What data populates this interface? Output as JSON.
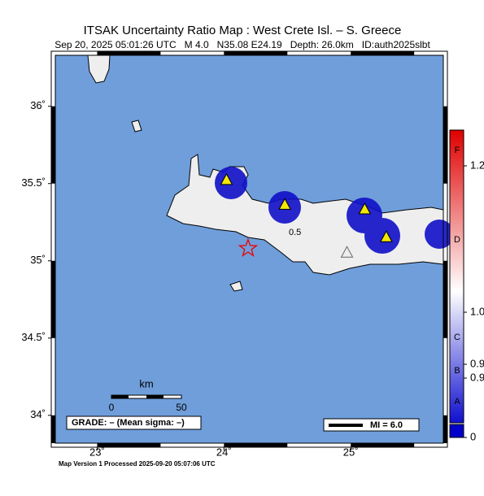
{
  "header": {
    "title": "ITSAK Uncertainty Ratio Map : West Crete Isl. – S. Greece",
    "subtitle": "Sep 20, 2025 05:01:26 UTC   M 4.0   N35.08 E24.19   Depth: 26.0km   ID:auth2025slbt"
  },
  "map": {
    "lat_range": [
      33.82,
      36.33
    ],
    "lon_range": [
      22.67,
      25.73
    ],
    "lat_ticks": [
      {
        "value": 36,
        "label": "36˚"
      },
      {
        "value": 35.5,
        "label": "35.5˚"
      },
      {
        "value": 35,
        "label": "35˚"
      },
      {
        "value": 34.5,
        "label": "34.5˚"
      },
      {
        "value": 34,
        "label": "34˚"
      }
    ],
    "lon_ticks": [
      {
        "value": 23,
        "label": "23˚"
      },
      {
        "value": 24,
        "label": "24˚"
      },
      {
        "value": 25,
        "label": "25˚"
      }
    ],
    "contour_label": "0.5",
    "epicenter": {
      "lat": 35.08,
      "lon": 24.19
    },
    "stations": [
      {
        "lat": 35.52,
        "lon": 24.02
      },
      {
        "lat": 35.36,
        "lon": 24.48
      },
      {
        "lat": 35.33,
        "lon": 25.11
      },
      {
        "lat": 35.15,
        "lon": 25.28
      }
    ],
    "gray_station": {
      "lat": 35.05,
      "lon": 24.97
    }
  },
  "scale_bar": {
    "unit": "km",
    "start": "0",
    "end": "50"
  },
  "grade": "GRADE: – (Mean sigma: –)",
  "mi_legend": "MI = 6.0",
  "colorbar": {
    "letters": [
      "F",
      "D",
      "C",
      "B",
      "A"
    ],
    "labels": [
      "1.2",
      "1.0",
      "0.9",
      "0.9",
      "0"
    ]
  },
  "footer": "Map Version 1 Processed 2025-09-20 05:07:06 UTC"
}
